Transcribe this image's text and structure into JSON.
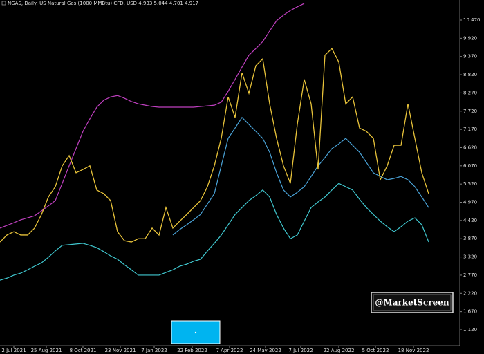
{
  "header": {
    "text": "NGAS, Daily: US Natural Gas (1000 MMBtu) CFD, USD 4.933 5.044 4.701 4.917"
  },
  "watermark": "@MarketScreen",
  "chart_data": {
    "type": "line",
    "xlim": [
      0,
      66.5
    ],
    "xticks": [
      {
        "value": 2,
        "label": "2 Jul 2021"
      },
      {
        "value": 6.7,
        "label": "25 Aug 2021"
      },
      {
        "value": 12,
        "label": "8 Oct 2021"
      },
      {
        "value": 17.4,
        "label": "23 Nov 2021"
      },
      {
        "value": 22.3,
        "label": "7 Jan 2022"
      },
      {
        "value": 27.8,
        "label": "22 Feb 2022"
      },
      {
        "value": 33.2,
        "label": "7 Apr 2022"
      },
      {
        "value": 38.4,
        "label": "24 May 2022"
      },
      {
        "value": 43.5,
        "label": "7 Jul 2022"
      },
      {
        "value": 49,
        "label": "22 Aug 2022"
      },
      {
        "value": 54.3,
        "label": "5 Oct 2022"
      },
      {
        "value": 59.8,
        "label": "18 Nov 2022"
      }
    ],
    "ylim": [
      0.64,
      11.075
    ],
    "yticks": [
      {
        "value": 1.12,
        "label": "1.120"
      },
      {
        "value": 1.67,
        "label": "1.670"
      },
      {
        "value": 2.22,
        "label": "2.220"
      },
      {
        "value": 2.77,
        "label": "2.770"
      },
      {
        "value": 3.32,
        "label": "3.320"
      },
      {
        "value": 3.87,
        "label": "3.870"
      },
      {
        "value": 4.42,
        "label": "4.420"
      },
      {
        "value": 4.97,
        "label": "4.970"
      },
      {
        "value": 5.52,
        "label": "5.520"
      },
      {
        "value": 6.07,
        "label": "6.070"
      },
      {
        "value": 6.62,
        "label": "6.620"
      },
      {
        "value": 7.17,
        "label": "7.170"
      },
      {
        "value": 7.72,
        "label": "7.720"
      },
      {
        "value": 8.27,
        "label": "8.270"
      },
      {
        "value": 8.82,
        "label": "8.820"
      },
      {
        "value": 9.37,
        "label": "9.370"
      },
      {
        "value": 9.92,
        "label": "9.920"
      },
      {
        "value": 10.47,
        "label": "10.470"
      }
    ],
    "series": [
      {
        "color": "#c040c0",
        "values": [
          4.19,
          4.27,
          4.35,
          4.44,
          4.5,
          4.56,
          4.71,
          4.86,
          5.02,
          5.54,
          6.07,
          6.59,
          7.11,
          7.49,
          7.84,
          8.05,
          8.15,
          8.19,
          8.11,
          8.01,
          7.94,
          7.9,
          7.86,
          7.84,
          7.84,
          7.84,
          7.84,
          7.84,
          7.84,
          7.86,
          7.88,
          7.9,
          7.99,
          8.32,
          8.68,
          9.05,
          9.41,
          9.61,
          9.82,
          10.14,
          10.45,
          10.62,
          10.76,
          10.87,
          10.97,
          null,
          null,
          null,
          null,
          null,
          null,
          null,
          null,
          null,
          null,
          null,
          null,
          null,
          null,
          null,
          null,
          null,
          null
        ]
      },
      {
        "color": "#4aa3d8",
        "values": [
          null,
          null,
          null,
          null,
          null,
          null,
          null,
          null,
          null,
          null,
          null,
          null,
          null,
          null,
          null,
          null,
          null,
          null,
          null,
          null,
          null,
          null,
          null,
          null,
          null,
          3.98,
          4.15,
          4.29,
          4.44,
          4.6,
          4.92,
          5.23,
          6.07,
          6.9,
          7.21,
          7.53,
          7.32,
          7.11,
          6.9,
          6.48,
          5.86,
          5.34,
          5.13,
          5.27,
          5.44,
          5.75,
          6.07,
          6.32,
          6.59,
          6.73,
          6.9,
          6.69,
          6.48,
          6.17,
          5.86,
          5.75,
          5.65,
          5.69,
          5.75,
          5.65,
          5.44,
          5.13,
          4.81
        ]
      },
      {
        "color": "#40c8d0",
        "values": [
          2.62,
          2.68,
          2.77,
          2.83,
          2.93,
          3.04,
          3.14,
          3.31,
          3.5,
          3.67,
          3.69,
          3.71,
          3.73,
          3.67,
          3.6,
          3.48,
          3.35,
          3.25,
          3.08,
          2.93,
          2.77,
          2.77,
          2.77,
          2.77,
          2.85,
          2.93,
          3.04,
          3.1,
          3.19,
          3.25,
          3.5,
          3.73,
          3.98,
          4.29,
          4.6,
          4.81,
          5.02,
          5.17,
          5.34,
          5.13,
          4.6,
          4.19,
          3.87,
          3.98,
          4.4,
          4.81,
          4.98,
          5.13,
          5.34,
          5.54,
          5.44,
          5.34,
          5.06,
          4.81,
          4.6,
          4.4,
          4.23,
          4.08,
          4.23,
          4.4,
          4.5,
          4.29,
          3.77
        ]
      },
      {
        "color": "#e8c33a",
        "values": [
          3.77,
          3.98,
          4.08,
          3.98,
          3.98,
          4.19,
          4.6,
          5.13,
          5.44,
          6.07,
          6.38,
          5.86,
          5.96,
          6.07,
          5.34,
          5.23,
          5.02,
          4.08,
          3.81,
          3.77,
          3.87,
          3.87,
          4.19,
          3.98,
          4.81,
          4.19,
          4.4,
          4.6,
          4.81,
          5.02,
          5.44,
          6.07,
          6.9,
          8.15,
          7.53,
          8.88,
          8.26,
          9.09,
          9.3,
          7.94,
          6.9,
          6.07,
          5.54,
          7.32,
          8.68,
          7.94,
          5.96,
          9.41,
          9.61,
          9.2,
          7.94,
          8.15,
          7.21,
          7.11,
          6.9,
          5.65,
          6.07,
          6.69,
          6.69,
          7.94,
          6.9,
          5.86,
          5.23
        ]
      }
    ]
  }
}
